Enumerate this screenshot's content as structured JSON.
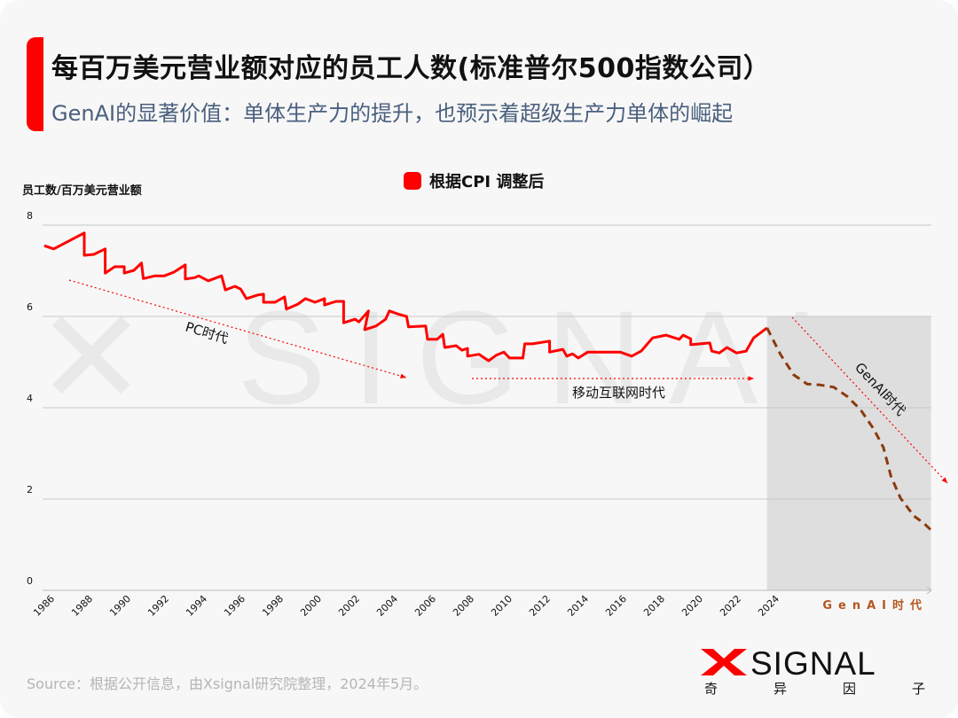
{
  "header": {
    "title": "每百万美元营业额对应的员工人数(标准普尔500指数公司）",
    "subtitle": "GenAI的显著价值：单体生产力的提升，也预示着超级生产力单体的崛起"
  },
  "footer": {
    "source": "Source：根据公开信息，由Xsignal研究院整理，2024年5月。",
    "logo_text": "XSIGNAL",
    "logo_subtitle": [
      "奇",
      "异",
      "因",
      "子"
    ]
  },
  "colors": {
    "accent": "#ff0000",
    "projection": "#8b3a0f",
    "shade": "#dedede",
    "subtitle": "#4a5f7e"
  },
  "chart_data": {
    "type": "line",
    "title": "",
    "ylabel": "员工数/百万美元营业额",
    "ylim": [
      0,
      8
    ],
    "yticks": [
      "0",
      "2",
      "4",
      "6",
      "8"
    ],
    "xticks": [
      "1986",
      "1988",
      "1990",
      "1992",
      "1994",
      "1996",
      "1998",
      "2000",
      "2002",
      "2004",
      "2006",
      "2008",
      "2010",
      "2012",
      "2014",
      "2016",
      "2018",
      "2020",
      "2022",
      "2024"
    ],
    "x_extra_label": "GenAI时代",
    "grid": true,
    "legend": "top-center",
    "series": [
      {
        "name": "根据CPI 调整后",
        "color": "#ff0000",
        "style": "solid",
        "points": [
          [
            1985.9,
            7.55
          ],
          [
            1986.4,
            7.48
          ],
          [
            1988.0,
            7.83
          ],
          [
            1988.0,
            7.34
          ],
          [
            1988.5,
            7.36
          ],
          [
            1989.1,
            7.48
          ],
          [
            1989.1,
            6.95
          ],
          [
            1989.6,
            7.09
          ],
          [
            1990.1,
            7.09
          ],
          [
            1990.1,
            6.95
          ],
          [
            1990.6,
            7.01
          ],
          [
            1991.0,
            7.17
          ],
          [
            1991.1,
            6.83
          ],
          [
            1991.7,
            6.89
          ],
          [
            1992.2,
            6.89
          ],
          [
            1992.7,
            6.97
          ],
          [
            1993.3,
            7.13
          ],
          [
            1993.3,
            6.82
          ],
          [
            1993.8,
            6.85
          ],
          [
            1994.0,
            6.89
          ],
          [
            1994.5,
            6.78
          ],
          [
            1995.2,
            6.89
          ],
          [
            1995.4,
            6.58
          ],
          [
            1995.9,
            6.66
          ],
          [
            1996.2,
            6.6
          ],
          [
            1996.5,
            6.39
          ],
          [
            1997.1,
            6.47
          ],
          [
            1997.4,
            6.49
          ],
          [
            1997.4,
            6.31
          ],
          [
            1998.0,
            6.31
          ],
          [
            1998.5,
            6.43
          ],
          [
            1998.6,
            6.16
          ],
          [
            1999.2,
            6.27
          ],
          [
            1999.6,
            6.39
          ],
          [
            2000.1,
            6.31
          ],
          [
            2000.6,
            6.39
          ],
          [
            2000.6,
            6.25
          ],
          [
            2001.2,
            6.33
          ],
          [
            2001.6,
            6.33
          ],
          [
            2001.6,
            5.86
          ],
          [
            2002.2,
            5.94
          ],
          [
            2002.4,
            5.88
          ],
          [
            2002.9,
            6.12
          ],
          [
            2002.7,
            5.71
          ],
          [
            2003.3,
            5.79
          ],
          [
            2003.8,
            5.94
          ],
          [
            2004.0,
            6.12
          ],
          [
            2004.4,
            6.06
          ],
          [
            2004.9,
            6.0
          ],
          [
            2005.0,
            5.77
          ],
          [
            2005.9,
            5.79
          ],
          [
            2006.0,
            5.5
          ],
          [
            2006.5,
            5.5
          ],
          [
            2006.8,
            5.61
          ],
          [
            2006.9,
            5.32
          ],
          [
            2007.5,
            5.36
          ],
          [
            2007.8,
            5.26
          ],
          [
            2008.1,
            5.3
          ],
          [
            2008.1,
            5.13
          ],
          [
            2008.7,
            5.17
          ],
          [
            2009.2,
            5.03
          ],
          [
            2009.6,
            5.15
          ],
          [
            2010.0,
            5.22
          ],
          [
            2010.3,
            5.09
          ],
          [
            2011.0,
            5.09
          ],
          [
            2011.1,
            5.4
          ],
          [
            2011.5,
            5.4
          ],
          [
            2012.4,
            5.46
          ],
          [
            2012.4,
            5.22
          ],
          [
            2013.1,
            5.28
          ],
          [
            2013.3,
            5.13
          ],
          [
            2013.6,
            5.18
          ],
          [
            2013.9,
            5.09
          ],
          [
            2014.4,
            5.22
          ],
          [
            2016.1,
            5.22
          ],
          [
            2016.7,
            5.13
          ],
          [
            2017.2,
            5.24
          ],
          [
            2017.8,
            5.53
          ],
          [
            2018.5,
            5.59
          ],
          [
            2019.2,
            5.5
          ],
          [
            2019.4,
            5.59
          ],
          [
            2019.8,
            5.51
          ],
          [
            2019.8,
            5.38
          ],
          [
            2020.8,
            5.42
          ],
          [
            2020.9,
            5.24
          ],
          [
            2021.3,
            5.2
          ],
          [
            2021.7,
            5.32
          ],
          [
            2022.2,
            5.2
          ],
          [
            2022.7,
            5.24
          ],
          [
            2023.1,
            5.53
          ],
          [
            2023.8,
            5.75
          ]
        ]
      },
      {
        "color": "#8b3a0f",
        "style": "dashed",
        "points": [
          [
            2023.8,
            5.75
          ],
          [
            2024.5,
            5.17
          ],
          [
            2025.2,
            4.72
          ],
          [
            2025.9,
            4.52
          ],
          [
            2026.6,
            4.5
          ],
          [
            2027.3,
            4.45
          ],
          [
            2028.0,
            4.25
          ],
          [
            2028.7,
            3.96
          ],
          [
            2029.4,
            3.53
          ],
          [
            2029.9,
            3.13
          ],
          [
            2030.3,
            2.5
          ],
          [
            2030.8,
            2.02
          ],
          [
            2031.5,
            1.63
          ],
          [
            2032.0,
            1.48
          ],
          [
            2032.4,
            1.32
          ]
        ]
      }
    ],
    "annotations": [
      {
        "text": "PC时代"
      },
      {
        "text": "移动互联网时代"
      },
      {
        "text": "GenAI时代"
      }
    ],
    "shaded_region": {
      "from": 2023.8,
      "to": 2032.4
    }
  }
}
